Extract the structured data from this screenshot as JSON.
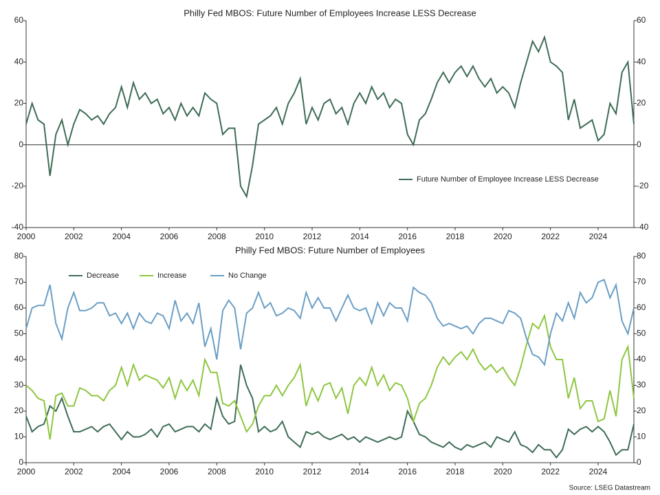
{
  "chart_data": [
    {
      "type": "line",
      "title": "Philly Fed MBOS: Future Number of Employees Increase LESS Decrease",
      "x": [
        2000,
        2000.25,
        2000.5,
        2000.75,
        2001,
        2001.25,
        2001.5,
        2001.75,
        2002,
        2002.25,
        2002.5,
        2002.75,
        2003,
        2003.25,
        2003.5,
        2003.75,
        2004,
        2004.25,
        2004.5,
        2004.75,
        2005,
        2005.25,
        2005.5,
        2005.75,
        2006,
        2006.25,
        2006.5,
        2006.75,
        2007,
        2007.25,
        2007.5,
        2007.75,
        2008,
        2008.25,
        2008.5,
        2008.75,
        2009,
        2009.25,
        2009.5,
        2009.75,
        2010,
        2010.25,
        2010.5,
        2010.75,
        2011,
        2011.25,
        2011.5,
        2011.75,
        2012,
        2012.25,
        2012.5,
        2012.75,
        2013,
        2013.25,
        2013.5,
        2013.75,
        2014,
        2014.25,
        2014.5,
        2014.75,
        2015,
        2015.25,
        2015.5,
        2015.75,
        2016,
        2016.25,
        2016.5,
        2016.75,
        2017,
        2017.25,
        2017.5,
        2017.75,
        2018,
        2018.25,
        2018.5,
        2018.75,
        2019,
        2019.25,
        2019.5,
        2019.75,
        2020,
        2020.25,
        2020.5,
        2020.75,
        2021,
        2021.25,
        2021.5,
        2021.75,
        2022,
        2022.25,
        2022.5,
        2022.75,
        2023,
        2023.25,
        2023.5,
        2023.75,
        2024,
        2024.25,
        2024.5,
        2024.75,
        2025,
        2025.25,
        2025.5
      ],
      "xlim": [
        2000,
        2025.5
      ],
      "xticks": [
        2000,
        2002,
        2004,
        2006,
        2008,
        2010,
        2012,
        2014,
        2016,
        2018,
        2020,
        2022,
        2024
      ],
      "ylim": [
        -40,
        60
      ],
      "yticks": [
        -40,
        -20,
        0,
        20,
        40,
        60
      ],
      "reference_line": 0,
      "legend": "lower right",
      "series": [
        {
          "name": "Future Number of Employee Increase LESS Decrease",
          "color": "#3d6b55",
          "values": [
            10,
            20,
            12,
            10,
            -15,
            5,
            12,
            0,
            10,
            17,
            15,
            12,
            14,
            10,
            15,
            18,
            28,
            18,
            30,
            22,
            25,
            20,
            22,
            15,
            18,
            12,
            20,
            14,
            18,
            14,
            25,
            22,
            20,
            5,
            8,
            8,
            -20,
            -25,
            -10,
            10,
            12,
            14,
            18,
            10,
            20,
            25,
            32,
            10,
            18,
            12,
            20,
            22,
            15,
            18,
            10,
            20,
            25,
            20,
            28,
            22,
            25,
            18,
            22,
            20,
            5,
            0,
            12,
            15,
            22,
            30,
            35,
            30,
            35,
            38,
            33,
            38,
            32,
            28,
            32,
            25,
            28,
            25,
            18,
            30,
            40,
            50,
            45,
            52,
            40,
            38,
            35,
            12,
            22,
            8,
            10,
            12,
            2,
            5,
            20,
            15,
            35,
            40,
            10
          ]
        }
      ]
    },
    {
      "type": "line",
      "title": "Philly Fed MBOS: Future Number of Employees",
      "x": [
        2000,
        2000.25,
        2000.5,
        2000.75,
        2001,
        2001.25,
        2001.5,
        2001.75,
        2002,
        2002.25,
        2002.5,
        2002.75,
        2003,
        2003.25,
        2003.5,
        2003.75,
        2004,
        2004.25,
        2004.5,
        2004.75,
        2005,
        2005.25,
        2005.5,
        2005.75,
        2006,
        2006.25,
        2006.5,
        2006.75,
        2007,
        2007.25,
        2007.5,
        2007.75,
        2008,
        2008.25,
        2008.5,
        2008.75,
        2009,
        2009.25,
        2009.5,
        2009.75,
        2010,
        2010.25,
        2010.5,
        2010.75,
        2011,
        2011.25,
        2011.5,
        2011.75,
        2012,
        2012.25,
        2012.5,
        2012.75,
        2013,
        2013.25,
        2013.5,
        2013.75,
        2014,
        2014.25,
        2014.5,
        2014.75,
        2015,
        2015.25,
        2015.5,
        2015.75,
        2016,
        2016.25,
        2016.5,
        2016.75,
        2017,
        2017.25,
        2017.5,
        2017.75,
        2018,
        2018.25,
        2018.5,
        2018.75,
        2019,
        2019.25,
        2019.5,
        2019.75,
        2020,
        2020.25,
        2020.5,
        2020.75,
        2021,
        2021.25,
        2021.5,
        2021.75,
        2022,
        2022.25,
        2022.5,
        2022.75,
        2023,
        2023.25,
        2023.5,
        2023.75,
        2024,
        2024.25,
        2024.5,
        2024.75,
        2025,
        2025.25,
        2025.5
      ],
      "xlim": [
        2000,
        2025.5
      ],
      "xticks": [
        2000,
        2002,
        2004,
        2006,
        2008,
        2010,
        2012,
        2014,
        2016,
        2018,
        2020,
        2022,
        2024
      ],
      "ylim": [
        0,
        80
      ],
      "yticks": [
        0,
        10,
        20,
        30,
        40,
        50,
        60,
        70,
        80
      ],
      "legend": "upper left",
      "series": [
        {
          "name": "Decrease",
          "color": "#3d6b55",
          "values": [
            18,
            12,
            14,
            15,
            22,
            20,
            25,
            18,
            12,
            12,
            13,
            14,
            12,
            14,
            15,
            12,
            9,
            12,
            10,
            10,
            11,
            13,
            10,
            14,
            15,
            12,
            13,
            14,
            14,
            12,
            15,
            13,
            25,
            18,
            15,
            16,
            38,
            30,
            25,
            12,
            14,
            12,
            13,
            16,
            10,
            8,
            6,
            12,
            11,
            12,
            10,
            9,
            10,
            11,
            9,
            10,
            8,
            10,
            9,
            8,
            9,
            10,
            9,
            10,
            20,
            16,
            11,
            10,
            8,
            7,
            6,
            8,
            6,
            5,
            7,
            6,
            7,
            8,
            6,
            10,
            9,
            8,
            12,
            7,
            6,
            4,
            7,
            5,
            5,
            2,
            5,
            13,
            11,
            13,
            14,
            12,
            14,
            12,
            8,
            3,
            5,
            5,
            15
          ]
        },
        {
          "name": "Increase",
          "color": "#8dc63f",
          "values": [
            30,
            28,
            25,
            24,
            9,
            26,
            27,
            22,
            22,
            29,
            28,
            26,
            26,
            24,
            28,
            30,
            37,
            30,
            38,
            32,
            34,
            33,
            32,
            29,
            33,
            25,
            32,
            28,
            32,
            26,
            40,
            35,
            35,
            23,
            22,
            24,
            18,
            12,
            15,
            22,
            26,
            26,
            30,
            26,
            30,
            33,
            38,
            22,
            29,
            24,
            30,
            31,
            25,
            29,
            19,
            30,
            33,
            30,
            37,
            30,
            34,
            28,
            31,
            30,
            25,
            16,
            23,
            25,
            30,
            37,
            41,
            38,
            41,
            43,
            40,
            44,
            39,
            36,
            38,
            35,
            37,
            33,
            30,
            37,
            46,
            54,
            52,
            57,
            45,
            40,
            40,
            25,
            33,
            21,
            24,
            24,
            16,
            17,
            28,
            18,
            40,
            45,
            25
          ]
        },
        {
          "name": "No Change",
          "color": "#6a9ec4",
          "values": [
            52,
            60,
            61,
            61,
            69,
            54,
            48,
            60,
            66,
            59,
            59,
            60,
            62,
            62,
            57,
            58,
            54,
            58,
            52,
            58,
            55,
            54,
            58,
            57,
            52,
            63,
            55,
            58,
            54,
            62,
            45,
            52,
            40,
            59,
            63,
            60,
            44,
            58,
            60,
            66,
            60,
            62,
            57,
            58,
            60,
            59,
            56,
            66,
            60,
            64,
            60,
            60,
            55,
            60,
            65,
            60,
            59,
            60,
            54,
            62,
            57,
            62,
            60,
            60,
            55,
            68,
            66,
            65,
            62,
            56,
            53,
            54,
            53,
            52,
            53,
            50,
            54,
            56,
            56,
            55,
            54,
            59,
            58,
            56,
            48,
            42,
            41,
            38,
            50,
            58,
            55,
            62,
            56,
            66,
            62,
            64,
            70,
            71,
            64,
            69,
            55,
            50,
            60
          ]
        }
      ]
    }
  ],
  "source": "Source: LSEG Datastream"
}
